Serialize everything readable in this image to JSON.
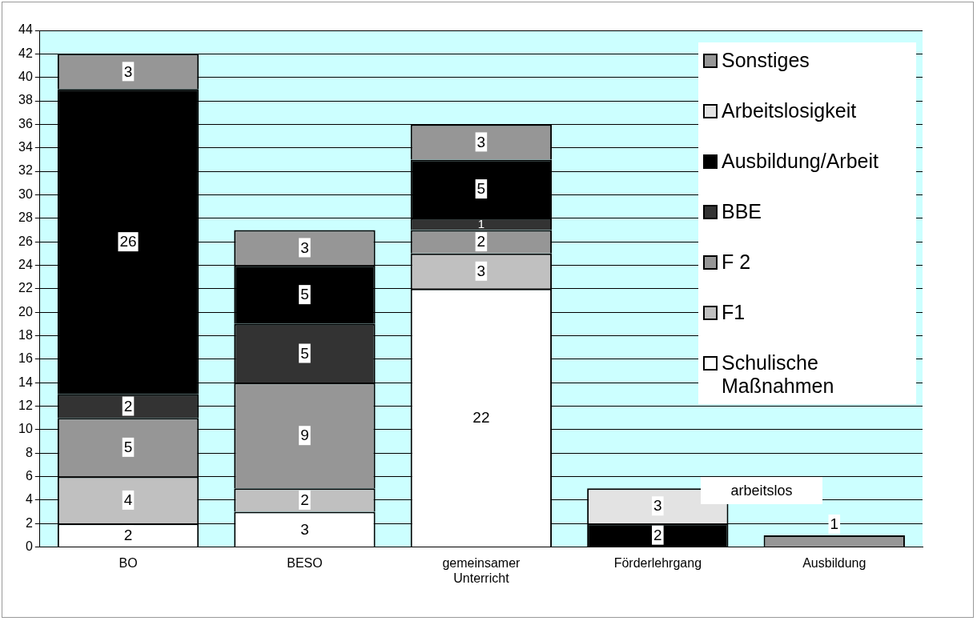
{
  "chart_data": {
    "type": "bar",
    "stacked": true,
    "categories": [
      "BO",
      "BESO",
      "gemeinsamer Unterricht",
      "Förderlehrgang",
      "Ausbildung"
    ],
    "series": [
      {
        "name": "Schulische Maßnahmen",
        "color": "#ffffff",
        "values": [
          2,
          3,
          22,
          null,
          null
        ]
      },
      {
        "name": "F1",
        "color": "#c0c0c0",
        "values": [
          4,
          2,
          3,
          null,
          null
        ]
      },
      {
        "name": "F 2",
        "color": "#969696",
        "values": [
          5,
          9,
          2,
          null,
          null
        ]
      },
      {
        "name": "BBE",
        "color": "#333333",
        "values": [
          2,
          5,
          1,
          null,
          null
        ]
      },
      {
        "name": "Ausbildung/Arbeit",
        "color": "#000000",
        "values": [
          26,
          5,
          5,
          2,
          null
        ]
      },
      {
        "name": "Arbeitslosigkeit",
        "color": "#e3e3e3",
        "values": [
          null,
          null,
          null,
          3,
          null
        ]
      },
      {
        "name": "Sonstiges",
        "color": "#969696",
        "values": [
          3,
          3,
          3,
          null,
          1
        ]
      }
    ],
    "ylim": [
      0,
      44
    ],
    "yticks": [
      0,
      2,
      4,
      6,
      8,
      10,
      12,
      14,
      16,
      18,
      20,
      22,
      24,
      26,
      28,
      30,
      32,
      34,
      36,
      38,
      40,
      42,
      44
    ],
    "grid": "y",
    "legend": "top right",
    "data_labels": true,
    "annotations": [
      "arbeitslos"
    ]
  }
}
